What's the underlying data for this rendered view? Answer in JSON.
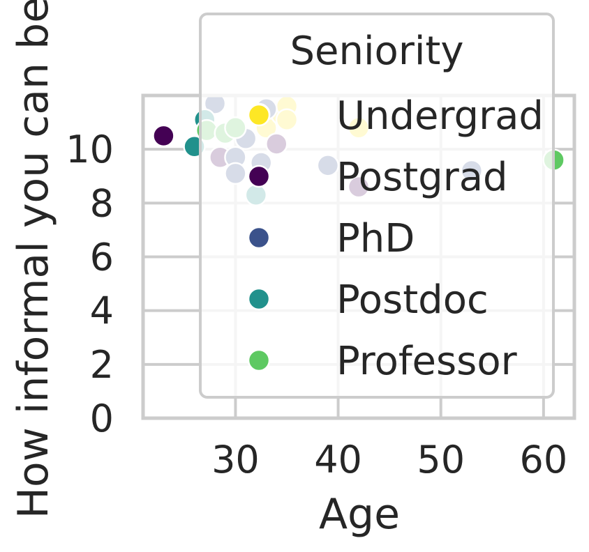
{
  "chart_data": {
    "type": "scatter",
    "xlabel": "Age",
    "ylabel": "How informal you can be",
    "xlim": [
      21,
      63
    ],
    "ylim": [
      0,
      12
    ],
    "xticks": [
      30,
      40,
      50,
      60
    ],
    "yticks": [
      0,
      2,
      4,
      6,
      8,
      10
    ],
    "grid": true,
    "legend": {
      "title": "Seniority",
      "placement": "upper right",
      "entries": [
        {
          "label": "Undergrad",
          "color": "#fde725"
        },
        {
          "label": "Postgrad",
          "color": "#440154"
        },
        {
          "label": "PhD",
          "color": "#3b528b"
        },
        {
          "label": "Postdoc",
          "color": "#21918c"
        },
        {
          "label": "Professor",
          "color": "#5ec962"
        }
      ]
    },
    "series": [
      {
        "name": "Undergrad",
        "color": "#fde725",
        "points": [
          [
            33,
            10.8
          ],
          [
            34.5,
            11.3
          ],
          [
            35,
            11.6
          ],
          [
            35,
            11.1
          ],
          [
            42,
            10.8
          ]
        ]
      },
      {
        "name": "Postgrad",
        "color": "#440154",
        "points": [
          [
            23,
            10.5
          ],
          [
            28.5,
            9.7
          ],
          [
            32.3,
            9.1
          ],
          [
            34,
            10.2
          ],
          [
            42,
            8.6
          ]
        ]
      },
      {
        "name": "PhD",
        "color": "#3b528b",
        "points": [
          [
            28,
            11.7
          ],
          [
            30,
            9.7
          ],
          [
            30,
            9.1
          ],
          [
            31,
            10.4
          ],
          [
            32.5,
            9.5
          ],
          [
            33,
            11.5
          ],
          [
            39,
            9.4
          ],
          [
            53,
            9.2
          ]
        ]
      },
      {
        "name": "Postdoc",
        "color": "#21918c",
        "points": [
          [
            26,
            10.1
          ],
          [
            27,
            11.1
          ],
          [
            32,
            8.3
          ]
        ]
      },
      {
        "name": "Professor",
        "color": "#5ec962",
        "points": [
          [
            27.2,
            10.7
          ],
          [
            29,
            10.6
          ],
          [
            30,
            10.8
          ],
          [
            32.3,
            11.3
          ],
          [
            61,
            9.6
          ]
        ]
      }
    ]
  }
}
